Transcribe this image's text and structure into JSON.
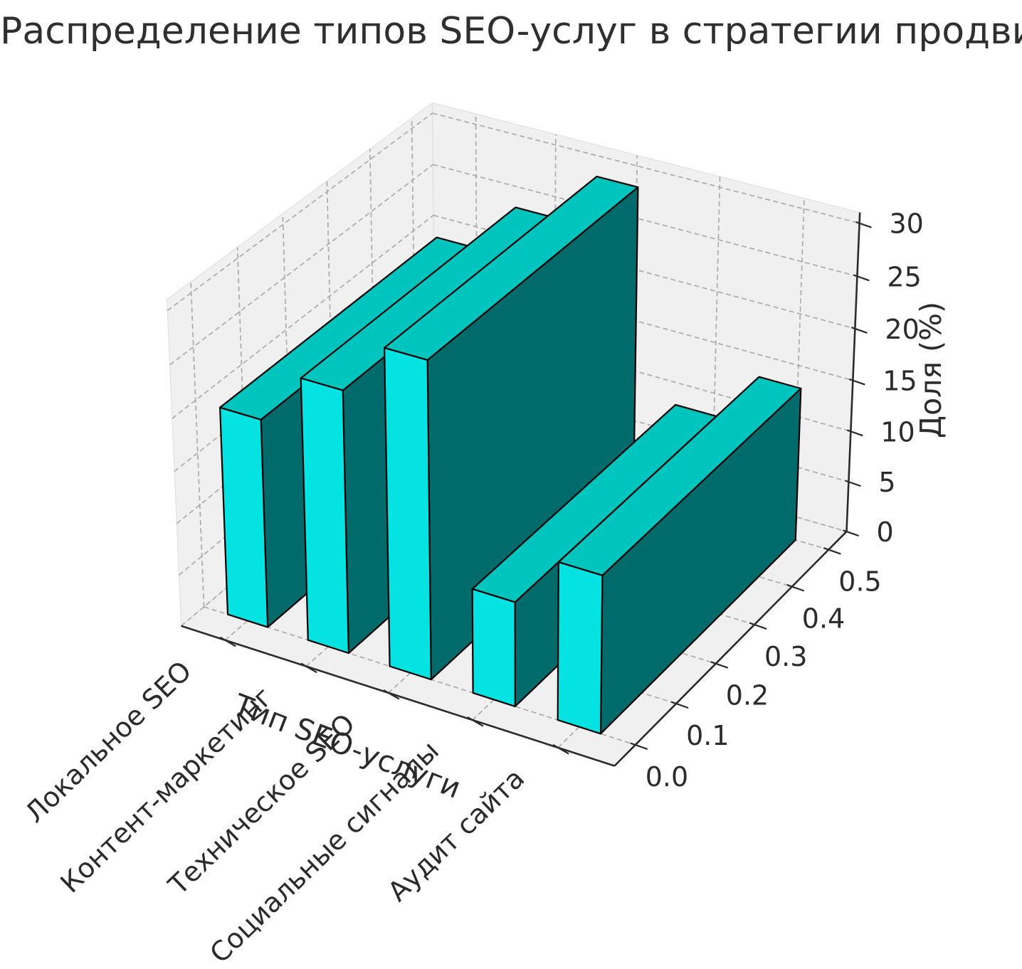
{
  "chart_data": {
    "type": "bar3d",
    "title": "Распределение типов SEO-услуг в стратегии продвижения",
    "xlabel": "Тип SEO-услуги",
    "zlabel": "Доля (%)",
    "categories": [
      "Локальное SEO",
      "Контент-маркетинг",
      "Техническое SEO",
      "Социальные сигналы",
      "Аудит сайта"
    ],
    "values": [
      20,
      25,
      30,
      10,
      15
    ],
    "depth_axis_ticks": [
      "0.0",
      "0.1",
      "0.2",
      "0.3",
      "0.4",
      "0.5"
    ],
    "z_ticks": [
      "0",
      "5",
      "10",
      "15",
      "20",
      "25",
      "30"
    ],
    "zlim": [
      0,
      30
    ],
    "grid": true,
    "legend_position": "none",
    "colors": {
      "bar_front": "#05E2E2",
      "bar_top": "#00C4BE",
      "bar_side": "#016A6B",
      "bar_edge": "#000000",
      "pane": "#F0F0F1",
      "pane_edge": "#DCDCDE",
      "grid_line": "#ABABAB",
      "axis_line": "#2B2B2B",
      "text": "#2B2B2B"
    }
  }
}
